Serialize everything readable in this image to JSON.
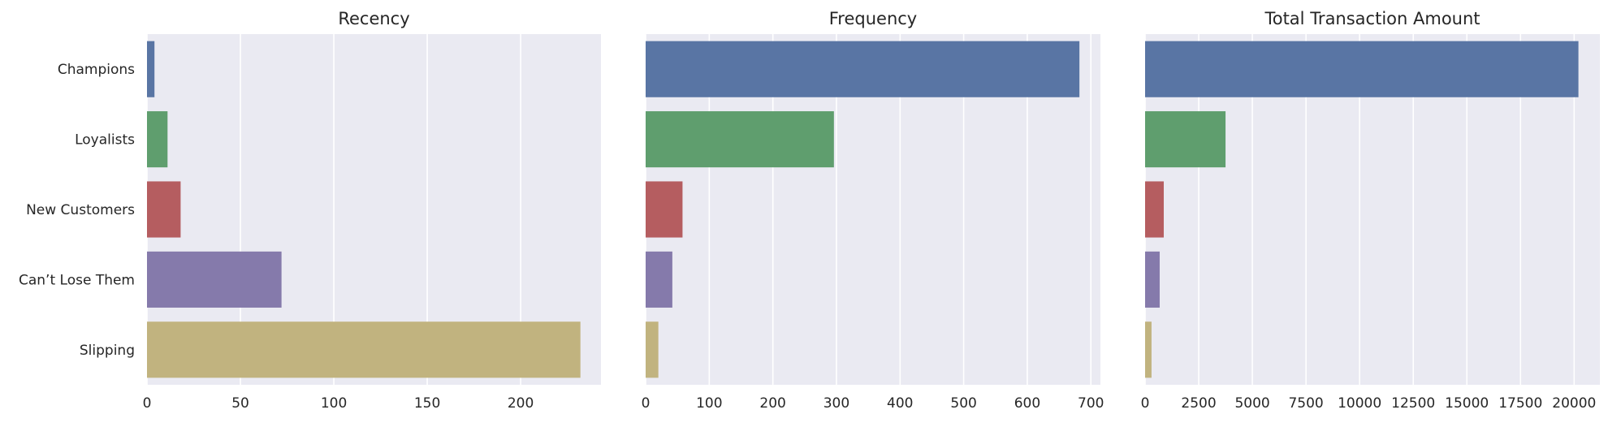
{
  "chart_data": [
    {
      "type": "bar",
      "orientation": "horizontal",
      "title": "Recency",
      "categories": [
        "Champions",
        "Loyalists",
        "New Customers",
        "Can’t Lose Them",
        "Slipping"
      ],
      "values": [
        4,
        11,
        18,
        72,
        232
      ],
      "xlim": [
        0,
        243
      ],
      "xticks": [
        0,
        50,
        100,
        150,
        200
      ],
      "grid": true,
      "show_category_labels": true
    },
    {
      "type": "bar",
      "orientation": "horizontal",
      "title": "Frequency",
      "categories": [
        "Champions",
        "Loyalists",
        "New Customers",
        "Can’t Lose Them",
        "Slipping"
      ],
      "values": [
        682,
        296,
        58,
        42,
        20
      ],
      "xlim": [
        0,
        715
      ],
      "xticks": [
        0,
        100,
        200,
        300,
        400,
        500,
        600,
        700
      ],
      "grid": true,
      "show_category_labels": false
    },
    {
      "type": "bar",
      "orientation": "horizontal",
      "title": "Total Transaction Amount",
      "categories": [
        "Champions",
        "Loyalists",
        "New Customers",
        "Can’t Lose Them",
        "Slipping"
      ],
      "values": [
        20200,
        3750,
        870,
        680,
        300
      ],
      "xlim": [
        0,
        21200
      ],
      "xticks": [
        0,
        2500,
        5000,
        7500,
        10000,
        12500,
        15000,
        17500,
        20000
      ],
      "grid": true,
      "show_category_labels": false
    }
  ],
  "colors": {
    "background": "#eaeaf2",
    "grid": "#ffffff",
    "bars": [
      "#5975a4",
      "#5f9e6e",
      "#b55d60",
      "#857aab",
      "#c1b37f"
    ]
  }
}
